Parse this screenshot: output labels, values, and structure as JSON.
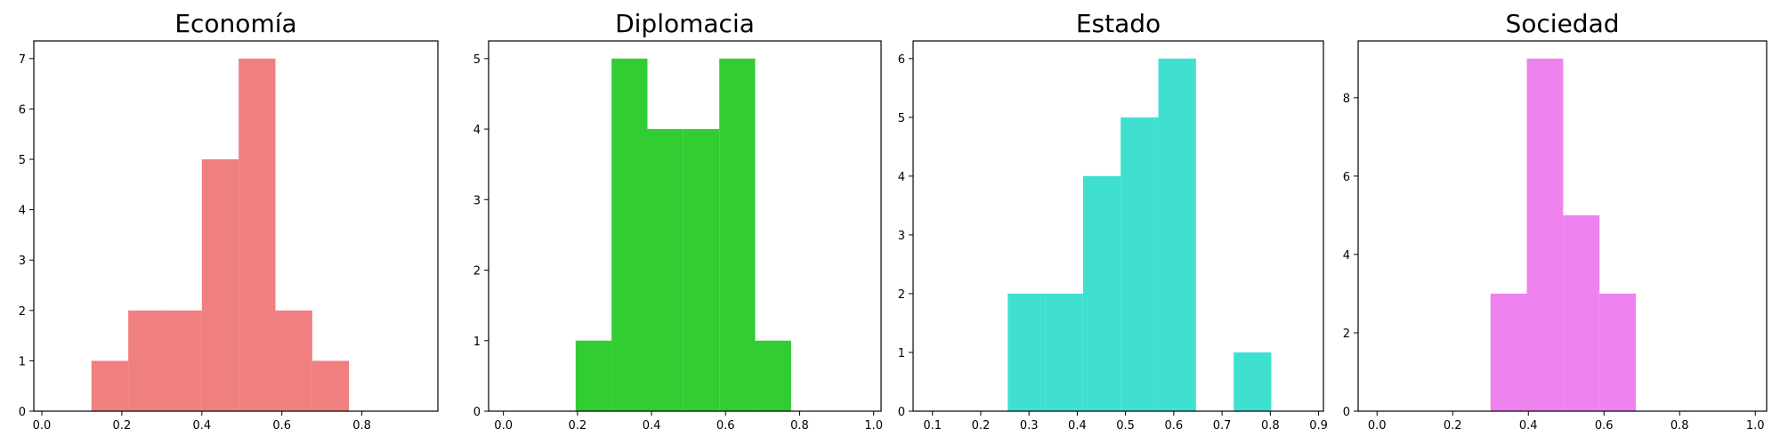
{
  "chart_data": [
    {
      "type": "bar",
      "title": "Economía",
      "color": "#f08080",
      "xlim": [
        -0.02,
        0.99
      ],
      "ylim": [
        0,
        7.35
      ],
      "xticks": [
        0.0,
        0.2,
        0.4,
        0.6,
        0.8
      ],
      "xtick_labels": [
        "0.0",
        "0.2",
        "0.4",
        "0.6",
        "0.8"
      ],
      "yticks": [
        0,
        1,
        2,
        3,
        4,
        5,
        6,
        7
      ],
      "ytick_labels": [
        "0",
        "1",
        "2",
        "3",
        "4",
        "5",
        "6",
        "7"
      ],
      "bins": [
        [
          0.124,
          0.216
        ],
        [
          0.216,
          0.308
        ],
        [
          0.308,
          0.4
        ],
        [
          0.4,
          0.492
        ],
        [
          0.492,
          0.584
        ],
        [
          0.584,
          0.676
        ],
        [
          0.676,
          0.768
        ]
      ],
      "values": [
        1,
        2,
        2,
        5,
        7,
        2,
        1
      ]
    },
    {
      "type": "bar",
      "title": "Diplomacia",
      "color": "#32cd32",
      "xlim": [
        -0.04,
        1.02
      ],
      "ylim": [
        0,
        5.25
      ],
      "xticks": [
        0.0,
        0.2,
        0.4,
        0.6,
        0.8,
        1.0
      ],
      "xtick_labels": [
        "0.0",
        "0.2",
        "0.4",
        "0.6",
        "0.8",
        "1.0"
      ],
      "yticks": [
        0,
        1,
        2,
        3,
        4,
        5
      ],
      "ytick_labels": [
        "0",
        "1",
        "2",
        "3",
        "4",
        "5"
      ],
      "bins": [
        [
          0.195,
          0.292
        ],
        [
          0.292,
          0.389
        ],
        [
          0.389,
          0.486
        ],
        [
          0.486,
          0.583
        ],
        [
          0.583,
          0.68
        ],
        [
          0.68,
          0.777
        ]
      ],
      "values": [
        1,
        5,
        4,
        4,
        5,
        1
      ]
    },
    {
      "type": "bar",
      "title": "Estado",
      "color": "#40e0d0",
      "xlim": [
        0.06,
        0.91
      ],
      "ylim": [
        0,
        6.3
      ],
      "xticks": [
        0.1,
        0.2,
        0.3,
        0.4,
        0.5,
        0.6,
        0.7,
        0.8,
        0.9
      ],
      "xtick_labels": [
        "0.1",
        "0.2",
        "0.3",
        "0.4",
        "0.5",
        "0.6",
        "0.7",
        "0.8",
        "0.9"
      ],
      "yticks": [
        0,
        1,
        2,
        3,
        4,
        5,
        6
      ],
      "ytick_labels": [
        "0",
        "1",
        "2",
        "3",
        "4",
        "5",
        "6"
      ],
      "bins": [
        [
          0.256,
          0.334
        ],
        [
          0.334,
          0.412
        ],
        [
          0.412,
          0.49
        ],
        [
          0.49,
          0.568
        ],
        [
          0.568,
          0.646
        ],
        [
          0.646,
          0.724
        ],
        [
          0.724,
          0.802
        ]
      ],
      "values": [
        2,
        2,
        4,
        5,
        6,
        0,
        1
      ]
    },
    {
      "type": "bar",
      "title": "Sociedad",
      "color": "#ee82ee",
      "xlim": [
        -0.05,
        1.03
      ],
      "ylim": [
        0,
        9.45
      ],
      "xticks": [
        0.0,
        0.2,
        0.4,
        0.6,
        0.8,
        1.0
      ],
      "xtick_labels": [
        "0.0",
        "0.2",
        "0.4",
        "0.6",
        "0.8",
        "1.0"
      ],
      "yticks": [
        0,
        2,
        4,
        6,
        8
      ],
      "ytick_labels": [
        "0",
        "2",
        "4",
        "6",
        "8"
      ],
      "bins": [
        [
          0.3,
          0.396
        ],
        [
          0.396,
          0.492
        ],
        [
          0.492,
          0.588
        ],
        [
          0.588,
          0.684
        ]
      ],
      "values": [
        3,
        9,
        5,
        3
      ]
    }
  ]
}
